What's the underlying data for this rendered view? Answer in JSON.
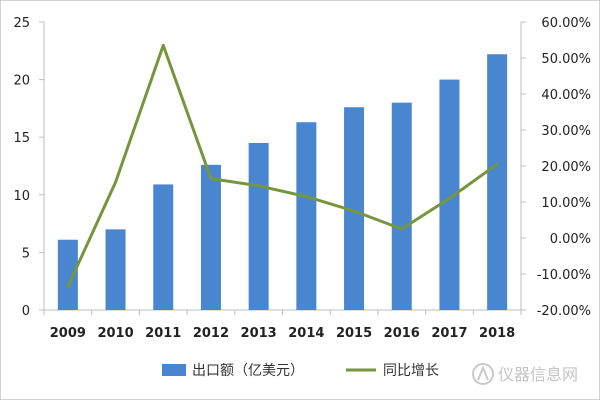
{
  "chart_data": {
    "type": "bar",
    "categories": [
      "2009",
      "2010",
      "2011",
      "2012",
      "2013",
      "2014",
      "2015",
      "2016",
      "2017",
      "2018"
    ],
    "series": [
      {
        "name": "出口额（亿美元）",
        "type": "bar",
        "axis": "left",
        "color": "#4a86d0",
        "values": [
          6.1,
          7.0,
          10.9,
          12.6,
          14.5,
          16.3,
          17.6,
          18.0,
          20.0,
          22.2
        ]
      },
      {
        "name": "同比增长",
        "type": "line",
        "axis": "right",
        "color": "#76963e",
        "values": [
          -13.5,
          15.5,
          53.5,
          16.5,
          14.5,
          11.5,
          7.5,
          2.5,
          11.0,
          20.5
        ]
      }
    ],
    "y_left": {
      "ylim": [
        0,
        25
      ],
      "ticks": [
        "0",
        "5",
        "10",
        "15",
        "20",
        "25"
      ]
    },
    "y_right": {
      "ylim": [
        -20,
        60
      ],
      "ticks": [
        "-20.00%",
        "-10.00%",
        "0.00%",
        "10.00%",
        "20.00%",
        "30.00%",
        "40.00%",
        "50.00%",
        "60.00%"
      ]
    },
    "grid": false,
    "legend": "bottom"
  },
  "watermark": {
    "text": "仪器信息网",
    "icon": "instrument-logo-icon"
  }
}
